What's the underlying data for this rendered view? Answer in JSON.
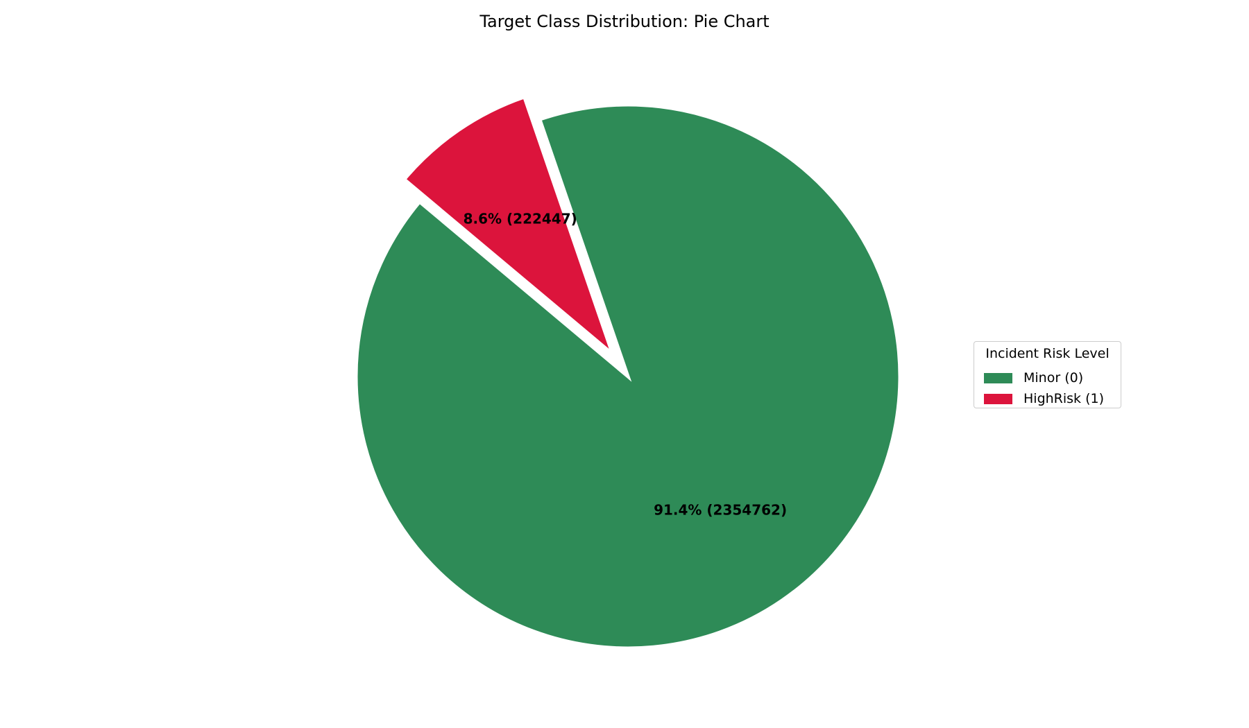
{
  "chart_data": {
    "type": "pie",
    "title": "Target Class Distribution: Pie Chart",
    "slices": [
      {
        "label": "Minor (0)",
        "value": 2354762,
        "percent": 91.4,
        "color": "#2e8b57",
        "display": "91.4% (2354762)",
        "exploded": false
      },
      {
        "label": "HighRisk (1)",
        "value": 222447,
        "percent": 8.6,
        "color": "#dc143c",
        "display": "8.6% (222447)",
        "exploded": true
      }
    ],
    "legend": {
      "title": "Incident Risk Level",
      "placement": "right",
      "items": [
        "Minor (0)",
        "HighRisk (1)"
      ]
    }
  }
}
